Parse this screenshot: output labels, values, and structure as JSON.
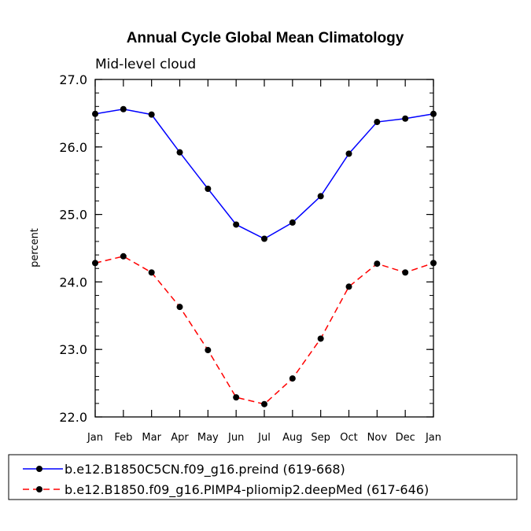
{
  "chart_data": {
    "type": "line",
    "title": "Annual Cycle Global Mean Climatology",
    "subtitle": "Mid-level cloud",
    "xlabel": "",
    "ylabel": "percent",
    "categories": [
      "Jan",
      "Feb",
      "Mar",
      "Apr",
      "May",
      "Jun",
      "Jul",
      "Aug",
      "Sep",
      "Oct",
      "Nov",
      "Dec",
      "Jan"
    ],
    "ylim": [
      22.0,
      27.0
    ],
    "yticks": [
      "22.0",
      "23.0",
      "24.0",
      "25.0",
      "26.0",
      "27.0"
    ],
    "legend_position": "bottom",
    "series": [
      {
        "name": "b.e12.B1850C5CN.f09_g16.preind (619-668)",
        "color": "#0000ff",
        "dash": "solid",
        "values": [
          26.49,
          26.56,
          26.48,
          25.92,
          25.38,
          24.85,
          24.64,
          24.88,
          25.27,
          25.9,
          26.37,
          26.42,
          26.49
        ]
      },
      {
        "name": "b.e12.B1850.f09_g16.PIMP4-pliomip2.deepMed (617-646)",
        "color": "#ff0000",
        "dash": "dashed",
        "values": [
          24.28,
          24.38,
          24.14,
          23.63,
          22.99,
          22.29,
          22.19,
          22.57,
          23.16,
          23.93,
          24.27,
          24.14,
          24.28
        ]
      }
    ]
  }
}
